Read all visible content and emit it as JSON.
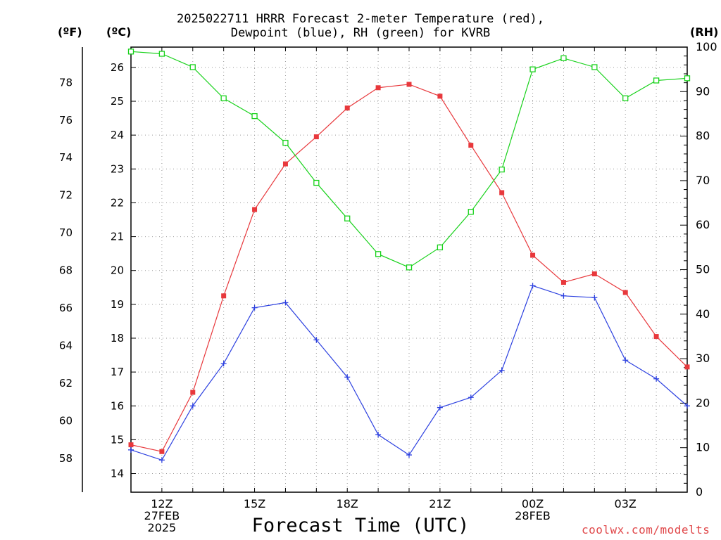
{
  "title_line1": "2025022711 HRRR Forecast 2-meter Temperature (red),",
  "title_line2": "Dewpoint (blue), RH (green) for KVRB",
  "unit_f": "(ºF)",
  "unit_c": "(ºC)",
  "unit_rh": "(RH)",
  "xlabel": "Forecast Time (UTC)",
  "credit": "coolwx.com/modelts",
  "chart_data": {
    "type": "line",
    "x": [
      11,
      12,
      13,
      14,
      15,
      16,
      17,
      18,
      19,
      20,
      21,
      22,
      23,
      24,
      25,
      26,
      27,
      28,
      29
    ],
    "xlim": [
      11,
      29
    ],
    "x_ticks": [
      {
        "x": 12,
        "lines": [
          "12Z",
          "27FEB",
          "2025"
        ]
      },
      {
        "x": 15,
        "lines": [
          "15Z"
        ]
      },
      {
        "x": 18,
        "lines": [
          "18Z"
        ]
      },
      {
        "x": 21,
        "lines": [
          "21Z"
        ]
      },
      {
        "x": 24,
        "lines": [
          "00Z",
          "28FEB"
        ]
      },
      {
        "x": 27,
        "lines": [
          "03Z"
        ]
      }
    ],
    "ylim_c": [
      13.45,
      26.6
    ],
    "y_ticks_c": [
      14,
      15,
      16,
      17,
      18,
      19,
      20,
      21,
      22,
      23,
      24,
      25,
      26
    ],
    "y_ticks_f": [
      58,
      60,
      62,
      64,
      66,
      68,
      70,
      72,
      74,
      76,
      78
    ],
    "ylim_rh": [
      0,
      100
    ],
    "y_ticks_rh": [
      0,
      10,
      20,
      30,
      40,
      50,
      60,
      70,
      80,
      90,
      100
    ],
    "grid": true,
    "series": [
      {
        "name": "Temperature",
        "axis": "c",
        "color": "#e8383c",
        "marker": "filled-square",
        "values": [
          14.85,
          14.65,
          16.4,
          19.25,
          21.8,
          23.15,
          23.95,
          24.8,
          25.4,
          25.5,
          25.15,
          23.7,
          22.3,
          20.45,
          19.65,
          19.9,
          19.35,
          18.05,
          17.15
        ]
      },
      {
        "name": "Dewpoint",
        "axis": "c",
        "color": "#2d41e0",
        "marker": "plus",
        "values": [
          14.7,
          14.4,
          16.0,
          17.25,
          18.9,
          19.05,
          17.95,
          16.85,
          15.15,
          14.55,
          15.95,
          16.25,
          17.05,
          19.55,
          19.25,
          19.2,
          17.35,
          16.8,
          16.0
        ]
      },
      {
        "name": "RH",
        "axis": "rh",
        "color": "#19d21c",
        "marker": "open-square",
        "values": [
          99,
          98.5,
          95.5,
          88.5,
          84.5,
          78.5,
          69.5,
          61.5,
          53.5,
          50.5,
          55,
          63,
          72.5,
          95,
          97.5,
          95.5,
          88.5,
          92.5,
          93
        ]
      }
    ]
  }
}
